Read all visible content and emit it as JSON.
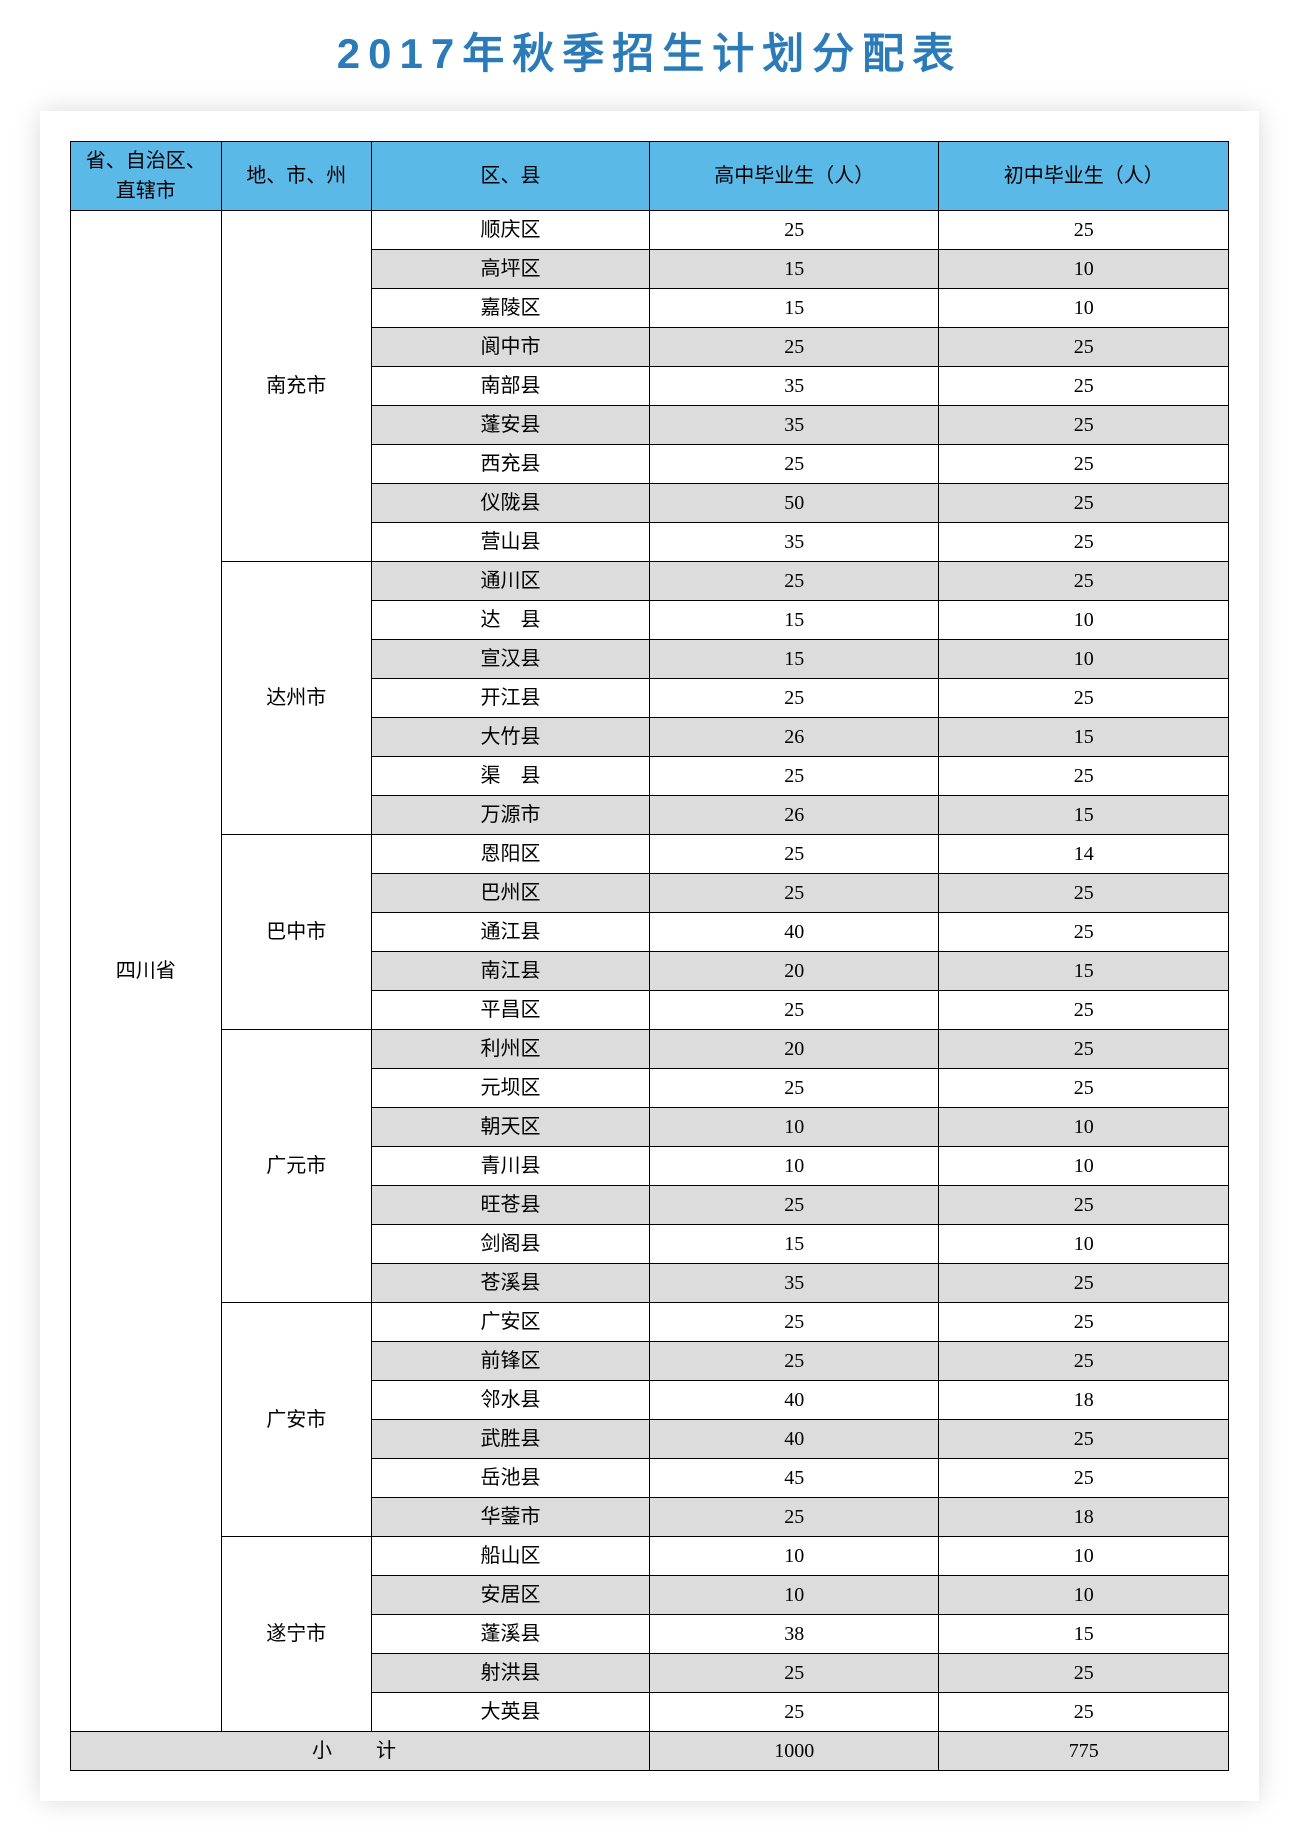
{
  "title": "2017年秋季招生计划分配表",
  "columns": {
    "province": "省、自治区、直辖市",
    "city": "地、市、州",
    "county": "区、县",
    "highschool": "高中毕业生（人）",
    "middleschool": "初中毕业生（人）"
  },
  "province": "四川省",
  "cities": [
    {
      "name": "南充市",
      "counties": [
        {
          "name": "顺庆区",
          "hs": "25",
          "ms": "25",
          "alt": false
        },
        {
          "name": "高坪区",
          "hs": "15",
          "ms": "10",
          "alt": true
        },
        {
          "name": "嘉陵区",
          "hs": "15",
          "ms": "10",
          "alt": false
        },
        {
          "name": "阆中市",
          "hs": "25",
          "ms": "25",
          "alt": true
        },
        {
          "name": "南部县",
          "hs": "35",
          "ms": "25",
          "alt": false
        },
        {
          "name": "蓬安县",
          "hs": "35",
          "ms": "25",
          "alt": true
        },
        {
          "name": "西充县",
          "hs": "25",
          "ms": "25",
          "alt": false
        },
        {
          "name": "仪陇县",
          "hs": "50",
          "ms": "25",
          "alt": true
        },
        {
          "name": "营山县",
          "hs": "35",
          "ms": "25",
          "alt": false
        }
      ]
    },
    {
      "name": "达州市",
      "counties": [
        {
          "name": "通川区",
          "hs": "25",
          "ms": "25",
          "alt": true
        },
        {
          "name": "达　县",
          "hs": "15",
          "ms": "10",
          "alt": false
        },
        {
          "name": "宣汉县",
          "hs": "15",
          "ms": "10",
          "alt": true
        },
        {
          "name": "开江县",
          "hs": "25",
          "ms": "25",
          "alt": false
        },
        {
          "name": "大竹县",
          "hs": "26",
          "ms": "15",
          "alt": true
        },
        {
          "name": "渠　县",
          "hs": "25",
          "ms": "25",
          "alt": false
        },
        {
          "name": "万源市",
          "hs": "26",
          "ms": "15",
          "alt": true
        }
      ]
    },
    {
      "name": "巴中市",
      "counties": [
        {
          "name": "恩阳区",
          "hs": "25",
          "ms": "14",
          "alt": false
        },
        {
          "name": "巴州区",
          "hs": "25",
          "ms": "25",
          "alt": true
        },
        {
          "name": "通江县",
          "hs": "40",
          "ms": "25",
          "alt": false
        },
        {
          "name": "南江县",
          "hs": "20",
          "ms": "15",
          "alt": true
        },
        {
          "name": "平昌区",
          "hs": "25",
          "ms": "25",
          "alt": false
        }
      ]
    },
    {
      "name": "广元市",
      "counties": [
        {
          "name": "利州区",
          "hs": "20",
          "ms": "25",
          "alt": true
        },
        {
          "name": "元坝区",
          "hs": "25",
          "ms": "25",
          "alt": false
        },
        {
          "name": "朝天区",
          "hs": "10",
          "ms": "10",
          "alt": true
        },
        {
          "name": "青川县",
          "hs": "10",
          "ms": "10",
          "alt": false
        },
        {
          "name": "旺苍县",
          "hs": "25",
          "ms": "25",
          "alt": true
        },
        {
          "name": "剑阁县",
          "hs": "15",
          "ms": "10",
          "alt": false
        },
        {
          "name": "苍溪县",
          "hs": "35",
          "ms": "25",
          "alt": true
        }
      ]
    },
    {
      "name": "广安市",
      "counties": [
        {
          "name": "广安区",
          "hs": "25",
          "ms": "25",
          "alt": false
        },
        {
          "name": "前锋区",
          "hs": "25",
          "ms": "25",
          "alt": true
        },
        {
          "name": "邻水县",
          "hs": "40",
          "ms": "18",
          "alt": false
        },
        {
          "name": "武胜县",
          "hs": "40",
          "ms": "25",
          "alt": true
        },
        {
          "name": "岳池县",
          "hs": "45",
          "ms": "25",
          "alt": false
        },
        {
          "name": "华蓥市",
          "hs": "25",
          "ms": "18",
          "alt": true
        }
      ]
    },
    {
      "name": "遂宁市",
      "counties": [
        {
          "name": "船山区",
          "hs": "10",
          "ms": "10",
          "alt": false
        },
        {
          "name": "安居区",
          "hs": "10",
          "ms": "10",
          "alt": true
        },
        {
          "name": "蓬溪县",
          "hs": "38",
          "ms": "15",
          "alt": false
        },
        {
          "name": "射洪县",
          "hs": "25",
          "ms": "25",
          "alt": true
        },
        {
          "name": "大英县",
          "hs": "25",
          "ms": "25",
          "alt": false
        }
      ]
    }
  ],
  "subtotal": {
    "label": "小　计",
    "hs": "1000",
    "ms": "775"
  },
  "colors": {
    "title": "#2b7bb9",
    "header_bg": "#5bb9e8",
    "alt_bg": "#dcdcdc",
    "border": "#000000",
    "bg": "#ffffff"
  }
}
